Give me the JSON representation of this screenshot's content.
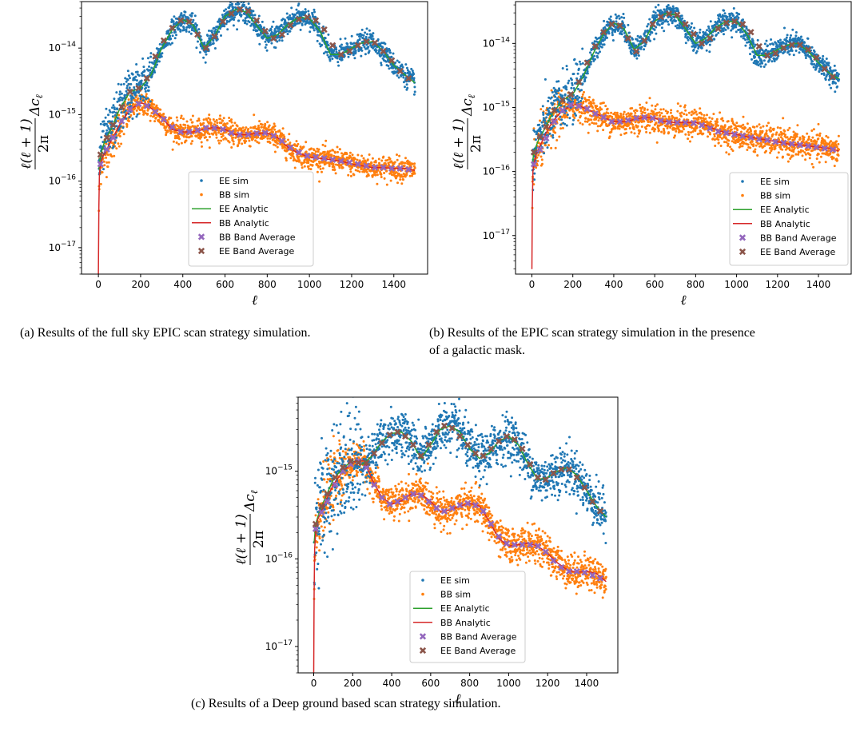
{
  "chart_data": [
    {
      "id": "a",
      "type": "scatter",
      "caption": "(a) Results of the full sky EPIC scan strategy simulation.",
      "caption_lines": [
        "(a) Results of the full sky EPIC scan strategy simulation."
      ],
      "xlabel": "ℓ",
      "ylabel": "ℓ(ℓ+1)/2π Δc_ℓ",
      "yscale": "log",
      "xlim": [
        -80,
        1560
      ],
      "ylim": [
        4e-18,
        5e-14
      ],
      "xticks": [
        0,
        200,
        400,
        600,
        800,
        1000,
        1200,
        1400
      ],
      "yticks": [
        {
          "value": 1e-17,
          "label": "10^-17"
        },
        {
          "value": 1e-16,
          "label": "10^-16"
        },
        {
          "value": 1e-15,
          "label": "10^-15"
        },
        {
          "value": 1e-14,
          "label": "10^-14"
        }
      ],
      "legend_position": "lower-center",
      "ee_curve": {
        "x": [
          2,
          10,
          30,
          60,
          100,
          150,
          200,
          250,
          300,
          350,
          400,
          450,
          500,
          550,
          600,
          650,
          700,
          750,
          800,
          850,
          900,
          950,
          1000,
          1050,
          1100,
          1150,
          1200,
          1250,
          1300,
          1350,
          1400,
          1450,
          1500
        ],
        "y": [
          1.5e-16,
          2.5e-16,
          4e-16,
          6e-16,
          1.2e-15,
          2.2e-15,
          2.5e-15,
          4e-15,
          1e-14,
          1.9e-14,
          2.7e-14,
          2.2e-14,
          1e-14,
          1.5e-14,
          3e-14,
          3.8e-14,
          3.5e-14,
          2.2e-14,
          1.4e-14,
          1.6e-14,
          2.3e-14,
          2.9e-14,
          2.8e-14,
          1.8e-14,
          8e-15,
          8e-15,
          1e-14,
          1.2e-14,
          1.25e-14,
          9e-15,
          5.5e-15,
          4e-15,
          3e-15
        ]
      },
      "bb_curve": {
        "x": [
          0,
          2,
          5,
          10,
          20,
          40,
          60,
          100,
          150,
          200,
          220,
          250,
          300,
          350,
          400,
          450,
          500,
          550,
          600,
          650,
          700,
          750,
          800,
          850,
          900,
          950,
          1000,
          1050,
          1100,
          1150,
          1200,
          1250,
          1300,
          1350,
          1400,
          1450,
          1500
        ],
        "y": [
          4e-18,
          4e-17,
          1.3e-16,
          1.8e-16,
          2.3e-16,
          3e-16,
          4e-16,
          7e-16,
          1.2e-15,
          1.5e-15,
          1.45e-15,
          1.25e-15,
          9e-16,
          6e-16,
          5.5e-16,
          5.5e-16,
          6e-16,
          6.5e-16,
          6e-16,
          5e-16,
          5e-16,
          5.2e-16,
          5.3e-16,
          4.5e-16,
          3.2e-16,
          2.6e-16,
          2.3e-16,
          2.2e-16,
          2.1e-16,
          2e-16,
          1.8e-16,
          1.7e-16,
          1.6e-16,
          1.6e-16,
          1.55e-16,
          1.55e-16,
          1.45e-16
        ]
      },
      "ee_band_average": {
        "x": [
          10,
          40,
          70,
          110,
          150,
          190,
          230,
          270,
          310,
          350,
          390,
          430,
          470,
          510,
          550,
          590,
          630,
          670,
          710,
          750,
          790,
          830,
          870,
          910,
          950,
          990,
          1030,
          1070,
          1110,
          1150,
          1190,
          1230,
          1270,
          1310,
          1350,
          1390,
          1430,
          1470
        ],
        "y": [
          2.5e-16,
          4.5e-16,
          7e-16,
          1.3e-15,
          2.2e-15,
          2.5e-15,
          3.5e-15,
          7.5e-15,
          1.3e-14,
          2e-14,
          2.6e-14,
          2.5e-14,
          1.6e-14,
          1e-14,
          1.5e-14,
          2.5e-14,
          3.3e-14,
          3.8e-14,
          3.6e-14,
          2.6e-14,
          1.8e-14,
          1.4e-14,
          1.6e-14,
          2.2e-14,
          2.7e-14,
          2.9e-14,
          2.6e-14,
          1.9e-14,
          1.1e-14,
          8e-15,
          9e-15,
          1.1e-14,
          1.25e-14,
          1.2e-14,
          9e-15,
          6.5e-15,
          4.5e-15,
          3.5e-15
        ]
      },
      "bb_band_average": {
        "x": [
          10,
          40,
          70,
          110,
          150,
          190,
          230,
          270,
          310,
          350,
          390,
          430,
          470,
          510,
          550,
          590,
          630,
          670,
          710,
          750,
          790,
          830,
          870,
          910,
          950,
          990,
          1030,
          1070,
          1110,
          1150,
          1190,
          1230,
          1270,
          1310,
          1350,
          1390,
          1430,
          1470
        ],
        "y": [
          1.8e-16,
          3e-16,
          4.5e-16,
          8e-16,
          1.2e-15,
          1.45e-15,
          1.35e-15,
          1.1e-15,
          8.5e-16,
          6.5e-16,
          5.5e-16,
          5.5e-16,
          5.8e-16,
          6.3e-16,
          6.3e-16,
          6e-16,
          5.3e-16,
          5e-16,
          5e-16,
          5.2e-16,
          5.3e-16,
          4.8e-16,
          4e-16,
          3.2e-16,
          2.7e-16,
          2.4e-16,
          2.3e-16,
          2.2e-16,
          2.1e-16,
          2e-16,
          1.9e-16,
          1.8e-16,
          1.7e-16,
          1.6e-16,
          1.6e-16,
          1.55e-16,
          1.55e-16,
          1.5e-16
        ]
      },
      "ee_scatter_rel": 0.18,
      "bb_scatter_rel": 0.2
    },
    {
      "id": "b",
      "type": "scatter",
      "caption": "(b) Results of the EPIC scan strategy simulation in the presence of a galactic mask.",
      "caption_lines": [
        "(b) Results of the EPIC scan strategy simulation in the presence",
        "of a galactic mask."
      ],
      "xlabel": "ℓ",
      "ylabel": "ℓ(ℓ+1)/2π Δc_ℓ",
      "yscale": "log",
      "xlim": [
        -80,
        1560
      ],
      "ylim": [
        2.5e-18,
        4.5e-14
      ],
      "xticks": [
        0,
        200,
        400,
        600,
        800,
        1000,
        1200,
        1400
      ],
      "yticks": [
        {
          "value": 1e-17,
          "label": "10^-17"
        },
        {
          "value": 1e-16,
          "label": "10^-16"
        },
        {
          "value": 1e-15,
          "label": "10^-15"
        },
        {
          "value": 1e-14,
          "label": "10^-14"
        }
      ],
      "legend_position": "lower-right",
      "ee_curve": {
        "x": [
          2,
          10,
          30,
          60,
          100,
          150,
          200,
          250,
          300,
          350,
          400,
          450,
          500,
          550,
          600,
          650,
          700,
          750,
          800,
          850,
          900,
          950,
          1000,
          1050,
          1100,
          1150,
          1200,
          1250,
          1300,
          1350,
          1400,
          1450,
          1500
        ],
        "y": [
          1.3e-16,
          2e-16,
          3e-16,
          4.5e-16,
          8e-16,
          1.3e-15,
          1.6e-15,
          3e-15,
          7e-15,
          1.4e-14,
          2.1e-14,
          1.7e-14,
          8e-15,
          1.1e-14,
          2.2e-14,
          2.9e-14,
          2.8e-14,
          1.7e-14,
          1e-14,
          1.2e-14,
          1.8e-14,
          2.2e-14,
          2.2e-14,
          1.4e-14,
          6.5e-15,
          6.5e-15,
          8e-15,
          9.5e-15,
          1e-14,
          7.5e-15,
          5e-15,
          3.5e-15,
          2.8e-15
        ]
      },
      "bb_curve": {
        "x": [
          0,
          2,
          5,
          10,
          20,
          40,
          60,
          100,
          150,
          200,
          220,
          250,
          300,
          350,
          400,
          450,
          500,
          550,
          600,
          650,
          700,
          750,
          800,
          850,
          900,
          950,
          1000,
          1050,
          1100,
          1150,
          1200,
          1250,
          1300,
          1350,
          1400,
          1450,
          1500
        ],
        "y": [
          3e-18,
          3e-17,
          1e-16,
          1.3e-16,
          1.8e-16,
          2.5e-16,
          3.5e-16,
          6e-16,
          9e-16,
          1.1e-15,
          1.1e-15,
          1e-15,
          8.5e-16,
          7e-16,
          6e-16,
          6e-16,
          6.5e-16,
          7e-16,
          6.8e-16,
          6e-16,
          5.8e-16,
          5.8e-16,
          5.8e-16,
          5.3e-16,
          4.5e-16,
          4e-16,
          3.8e-16,
          3.5e-16,
          3.3e-16,
          3.1e-16,
          2.9e-16,
          2.7e-16,
          2.6e-16,
          2.5e-16,
          2.4e-16,
          2.3e-16,
          2.1e-16
        ]
      },
      "ee_band_average": {
        "x": [
          10,
          40,
          70,
          110,
          150,
          190,
          230,
          270,
          310,
          350,
          390,
          430,
          470,
          510,
          550,
          590,
          630,
          670,
          710,
          750,
          790,
          830,
          870,
          910,
          950,
          990,
          1030,
          1070,
          1110,
          1150,
          1190,
          1230,
          1270,
          1310,
          1350,
          1390,
          1430,
          1470
        ],
        "y": [
          2e-16,
          3.5e-16,
          5e-16,
          9e-16,
          1.3e-15,
          1.6e-15,
          2.5e-15,
          5e-15,
          9e-15,
          1.5e-14,
          2e-14,
          1.9e-14,
          1.2e-14,
          7.5e-15,
          1.1e-14,
          2e-14,
          2.6e-14,
          2.9e-14,
          2.8e-14,
          2e-14,
          1.4e-14,
          1e-14,
          1.2e-14,
          1.7e-14,
          2.1e-14,
          2.2e-14,
          2e-14,
          1.5e-14,
          9e-15,
          6.5e-15,
          7e-15,
          8.5e-15,
          9.5e-15,
          9.5e-15,
          8e-15,
          6e-15,
          4e-15,
          3e-15
        ]
      },
      "bb_band_average": {
        "x": [
          10,
          40,
          70,
          110,
          150,
          190,
          230,
          270,
          310,
          350,
          390,
          430,
          470,
          510,
          550,
          590,
          630,
          670,
          710,
          750,
          790,
          830,
          870,
          910,
          950,
          990,
          1030,
          1070,
          1110,
          1150,
          1190,
          1230,
          1270,
          1310,
          1350,
          1390,
          1430,
          1470
        ],
        "y": [
          1.3e-16,
          2.2e-16,
          3.3e-16,
          6e-16,
          9e-16,
          1.1e-15,
          1.05e-15,
          9.5e-16,
          8e-16,
          7e-16,
          6e-16,
          6e-16,
          6.3e-16,
          6.8e-16,
          7e-16,
          6.8e-16,
          6.2e-16,
          5.9e-16,
          5.8e-16,
          5.8e-16,
          5.7e-16,
          5.3e-16,
          4.7e-16,
          4.2e-16,
          4e-16,
          3.8e-16,
          3.6e-16,
          3.4e-16,
          3.2e-16,
          3.1e-16,
          2.9e-16,
          2.8e-16,
          2.7e-16,
          2.6e-16,
          2.5e-16,
          2.4e-16,
          2.3e-16,
          2.2e-16
        ]
      },
      "ee_scatter_rel": 0.2,
      "bb_scatter_rel": 0.25
    },
    {
      "id": "c",
      "type": "scatter",
      "caption": "(c) Results of a Deep ground based scan strategy simulation.",
      "caption_lines": [
        "(c) Results of a Deep ground based scan strategy simulation."
      ],
      "xlabel": "ℓ",
      "ylabel": "ℓ(ℓ+1)/2π Δc_ℓ",
      "yscale": "log",
      "xlim": [
        -80,
        1560
      ],
      "ylim": [
        5e-18,
        7e-15
      ],
      "xticks": [
        0,
        200,
        400,
        600,
        800,
        1000,
        1200,
        1400
      ],
      "yticks": [
        {
          "value": 1e-17,
          "label": "10^-17"
        },
        {
          "value": 1e-16,
          "label": "10^-16"
        },
        {
          "value": 1e-15,
          "label": "10^-15"
        }
      ],
      "legend_position": "lower-center",
      "ee_curve": {
        "x": [
          2,
          10,
          30,
          60,
          100,
          150,
          200,
          250,
          300,
          350,
          400,
          450,
          500,
          550,
          600,
          650,
          700,
          750,
          800,
          850,
          900,
          950,
          1000,
          1050,
          1100,
          1150,
          1200,
          1250,
          1300,
          1350,
          1400,
          1450,
          1500
        ],
        "y": [
          1.5e-16,
          2.5e-16,
          3.5e-16,
          5e-16,
          8e-16,
          1.1e-15,
          1.3e-15,
          1.2e-15,
          1.5e-15,
          2.2e-15,
          2.7e-15,
          2.8e-15,
          2.2e-15,
          1.4e-15,
          2e-15,
          3e-15,
          3.3e-15,
          2.8e-15,
          1.8e-15,
          1.4e-15,
          1.6e-15,
          2.2e-15,
          2.5e-15,
          2e-15,
          1.2e-15,
          8e-16,
          8.5e-16,
          1e-15,
          1.1e-15,
          9e-16,
          6e-16,
          4e-16,
          3e-16
        ]
      },
      "bb_curve": {
        "x": [
          0,
          2,
          5,
          10,
          20,
          40,
          60,
          100,
          150,
          200,
          230,
          260,
          300,
          350,
          400,
          450,
          500,
          550,
          600,
          650,
          700,
          750,
          800,
          850,
          900,
          950,
          1000,
          1050,
          1100,
          1150,
          1200,
          1250,
          1300,
          1350,
          1400,
          1450,
          1500
        ],
        "y": [
          5e-18,
          4e-17,
          1.3e-16,
          2e-16,
          2.8e-16,
          3.5e-16,
          4.5e-16,
          7e-16,
          1e-15,
          1.25e-15,
          1.35e-15,
          1.3e-15,
          8e-16,
          5e-16,
          4.2e-16,
          4.6e-16,
          5.5e-16,
          5.5e-16,
          4.5e-16,
          3.5e-16,
          3.6e-16,
          4e-16,
          4.3e-16,
          4e-16,
          2.7e-16,
          1.7e-16,
          1.4e-16,
          1.45e-16,
          1.5e-16,
          1.4e-16,
          1.15e-16,
          9e-17,
          7.5e-17,
          7e-17,
          7.2e-17,
          6.8e-17,
          5.5e-17
        ]
      },
      "ee_band_average": {
        "x": [
          10,
          40,
          70,
          110,
          150,
          190,
          230,
          270,
          310,
          350,
          390,
          430,
          470,
          510,
          550,
          590,
          630,
          670,
          710,
          750,
          790,
          830,
          870,
          910,
          950,
          990,
          1030,
          1070,
          1110,
          1150,
          1190,
          1230,
          1270,
          1310,
          1350,
          1390,
          1430,
          1470
        ],
        "y": [
          2.5e-16,
          4e-16,
          5.5e-16,
          8.5e-16,
          1.1e-15,
          1.3e-15,
          1.25e-15,
          1.25e-15,
          1.6e-15,
          2.1e-15,
          2.6e-15,
          2.8e-15,
          2.5e-15,
          2e-15,
          1.5e-15,
          2e-15,
          2.8e-15,
          3.3e-15,
          3.1e-15,
          2.5e-15,
          2e-15,
          1.6e-15,
          1.5e-15,
          1.8e-15,
          2.2e-15,
          2.5e-15,
          2.3e-15,
          1.8e-15,
          1.2e-15,
          8.5e-16,
          8e-16,
          9.5e-16,
          1.05e-15,
          1.05e-15,
          8.5e-16,
          6.5e-16,
          4.5e-16,
          3.5e-16
        ]
      },
      "bb_band_average": {
        "x": [
          10,
          40,
          70,
          110,
          150,
          190,
          230,
          270,
          310,
          350,
          390,
          430,
          470,
          510,
          550,
          590,
          630,
          670,
          710,
          750,
          790,
          830,
          870,
          910,
          950,
          990,
          1030,
          1070,
          1110,
          1150,
          1190,
          1230,
          1270,
          1310,
          1350,
          1390,
          1430,
          1470
        ],
        "y": [
          2.2e-16,
          3.4e-16,
          4.5e-16,
          7e-16,
          1e-15,
          1.2e-15,
          1.3e-15,
          1.1e-15,
          7e-16,
          5e-16,
          4.2e-16,
          4.5e-16,
          5e-16,
          5.5e-16,
          5.3e-16,
          4.5e-16,
          3.8e-16,
          3.5e-16,
          3.8e-16,
          4.1e-16,
          4.3e-16,
          4.1e-16,
          3.5e-16,
          2.5e-16,
          1.8e-16,
          1.5e-16,
          1.45e-16,
          1.45e-16,
          1.45e-16,
          1.4e-16,
          1.2e-16,
          9.5e-17,
          8e-17,
          7.2e-17,
          7.2e-17,
          7e-17,
          6.5e-17,
          6e-17
        ]
      },
      "ee_scatter_rel": 0.3,
      "bb_scatter_rel": 0.22
    }
  ],
  "legend": [
    {
      "label": "EE sim",
      "kind": "dot",
      "color": "#1f77b4"
    },
    {
      "label": "BB sim",
      "kind": "dot",
      "color": "#ff7f0e"
    },
    {
      "label": "EE Analytic",
      "kind": "line",
      "color": "#2ca02c"
    },
    {
      "label": "BB Analytic",
      "kind": "line",
      "color": "#d62728"
    },
    {
      "label": "BB Band Average",
      "kind": "cross",
      "color": "#9467bd"
    },
    {
      "label": "EE Band Average",
      "kind": "cross",
      "color": "#8c564b"
    }
  ]
}
